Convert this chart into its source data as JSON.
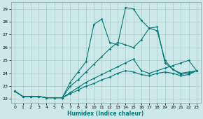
{
  "xlabel": "Humidex (Indice chaleur)",
  "bg_color": "#cce8e8",
  "grid_color": "#aacccc",
  "line_color": "#007878",
  "xlim_min": -0.5,
  "xlim_max": 23.5,
  "ylim_min": 21.7,
  "ylim_max": 29.5,
  "xticks": [
    0,
    1,
    2,
    3,
    4,
    5,
    6,
    7,
    8,
    9,
    10,
    11,
    12,
    13,
    14,
    15,
    16,
    17,
    18,
    19,
    20,
    21,
    22,
    23
  ],
  "yticks": [
    22,
    23,
    24,
    25,
    26,
    27,
    28,
    29
  ],
  "line1_x": [
    0,
    1,
    2,
    3,
    4,
    5,
    6,
    7,
    8,
    9,
    10,
    11,
    12,
    13,
    14,
    15,
    16,
    17,
    18,
    19,
    20,
    21,
    22,
    23
  ],
  "line1_y": [
    22.6,
    22.2,
    22.2,
    22.2,
    22.1,
    22.1,
    22.1,
    23.3,
    24.1,
    24.9,
    27.8,
    28.2,
    26.4,
    26.2,
    29.1,
    29.0,
    28.1,
    27.5,
    27.6,
    24.8,
    24.3,
    24.0,
    24.1,
    24.2
  ],
  "line2_x": [
    0,
    1,
    2,
    3,
    4,
    5,
    6,
    7,
    8,
    9,
    10,
    11,
    12,
    13,
    14,
    15,
    16,
    17,
    18,
    19,
    20,
    21,
    22,
    23
  ],
  "line2_y": [
    22.6,
    22.2,
    22.2,
    22.2,
    22.1,
    22.1,
    22.1,
    23.0,
    23.5,
    24.1,
    24.7,
    25.3,
    25.9,
    26.4,
    26.2,
    26.0,
    26.6,
    27.5,
    27.3,
    25.0,
    24.3,
    23.9,
    24.0,
    24.2
  ],
  "line3_x": [
    0,
    1,
    2,
    3,
    4,
    5,
    6,
    7,
    8,
    9,
    10,
    11,
    12,
    13,
    14,
    15,
    16,
    17,
    18,
    19,
    20,
    21,
    22,
    23
  ],
  "line3_y": [
    22.6,
    22.2,
    22.2,
    22.2,
    22.1,
    22.1,
    22.1,
    22.5,
    22.9,
    23.3,
    23.6,
    23.9,
    24.2,
    24.5,
    24.8,
    25.1,
    24.2,
    24.0,
    24.2,
    24.4,
    24.6,
    24.8,
    25.0,
    24.2
  ],
  "line4_x": [
    0,
    1,
    2,
    3,
    4,
    5,
    6,
    7,
    8,
    9,
    10,
    11,
    12,
    13,
    14,
    15,
    16,
    17,
    18,
    19,
    20,
    21,
    22,
    23
  ],
  "line4_y": [
    22.6,
    22.2,
    22.2,
    22.2,
    22.1,
    22.1,
    22.1,
    22.4,
    22.7,
    23.0,
    23.2,
    23.5,
    23.7,
    24.0,
    24.2,
    24.1,
    23.9,
    23.8,
    24.0,
    24.1,
    24.0,
    23.8,
    23.9,
    24.2
  ]
}
